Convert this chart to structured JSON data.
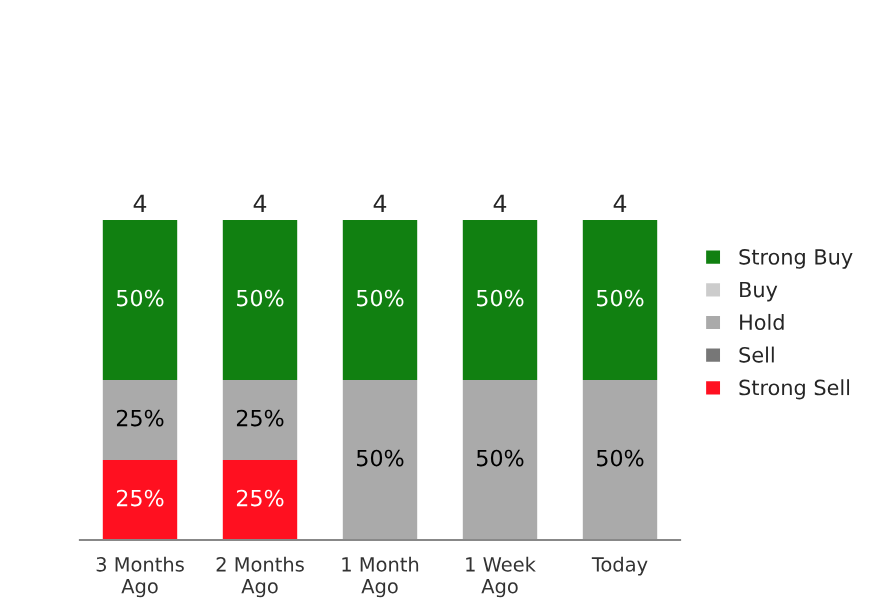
{
  "chart_data": {
    "type": "bar",
    "stacked": true,
    "categories": [
      "3 Months\nAgo",
      "2 Months\nAgo",
      "1 Month\nAgo",
      "1 Week\nAgo",
      "Today"
    ],
    "series": [
      {
        "name": "Strong Sell",
        "color": "#ff1020",
        "values": [
          25,
          25,
          null,
          null,
          null
        ],
        "value_labels": [
          "25%",
          "25%",
          null,
          null,
          null
        ]
      },
      {
        "name": "Sell",
        "color": "#777777",
        "values": [
          null,
          null,
          null,
          null,
          null
        ]
      },
      {
        "name": "Hold",
        "color": "#aaaaaa",
        "values": [
          25,
          25,
          50,
          50,
          50
        ],
        "value_labels": [
          "25%",
          "25%",
          "50%",
          "50%",
          "50%"
        ]
      },
      {
        "name": "Buy",
        "color": "#cccccc",
        "values": [
          null,
          null,
          null,
          null,
          null
        ]
      },
      {
        "name": "Strong Buy",
        "color": "#118011",
        "values": [
          50,
          50,
          50,
          50,
          50
        ],
        "value_labels": [
          "50%",
          "50%",
          "50%",
          "50%",
          "50%"
        ]
      }
    ],
    "annotations": [
      {
        "text": "4",
        "x": "3 Months\nAgo",
        "y": 100
      },
      {
        "text": "4",
        "x": "2 Months\nAgo",
        "y": 100
      },
      {
        "text": "4",
        "x": "1 Month\nAgo",
        "y": 100
      },
      {
        "text": "4",
        "x": "1 Week\nAgo",
        "y": 100
      },
      {
        "text": "4",
        "x": "Today",
        "y": 100
      }
    ],
    "legend": "right",
    "grid": false,
    "tick_labels": "x"
  }
}
